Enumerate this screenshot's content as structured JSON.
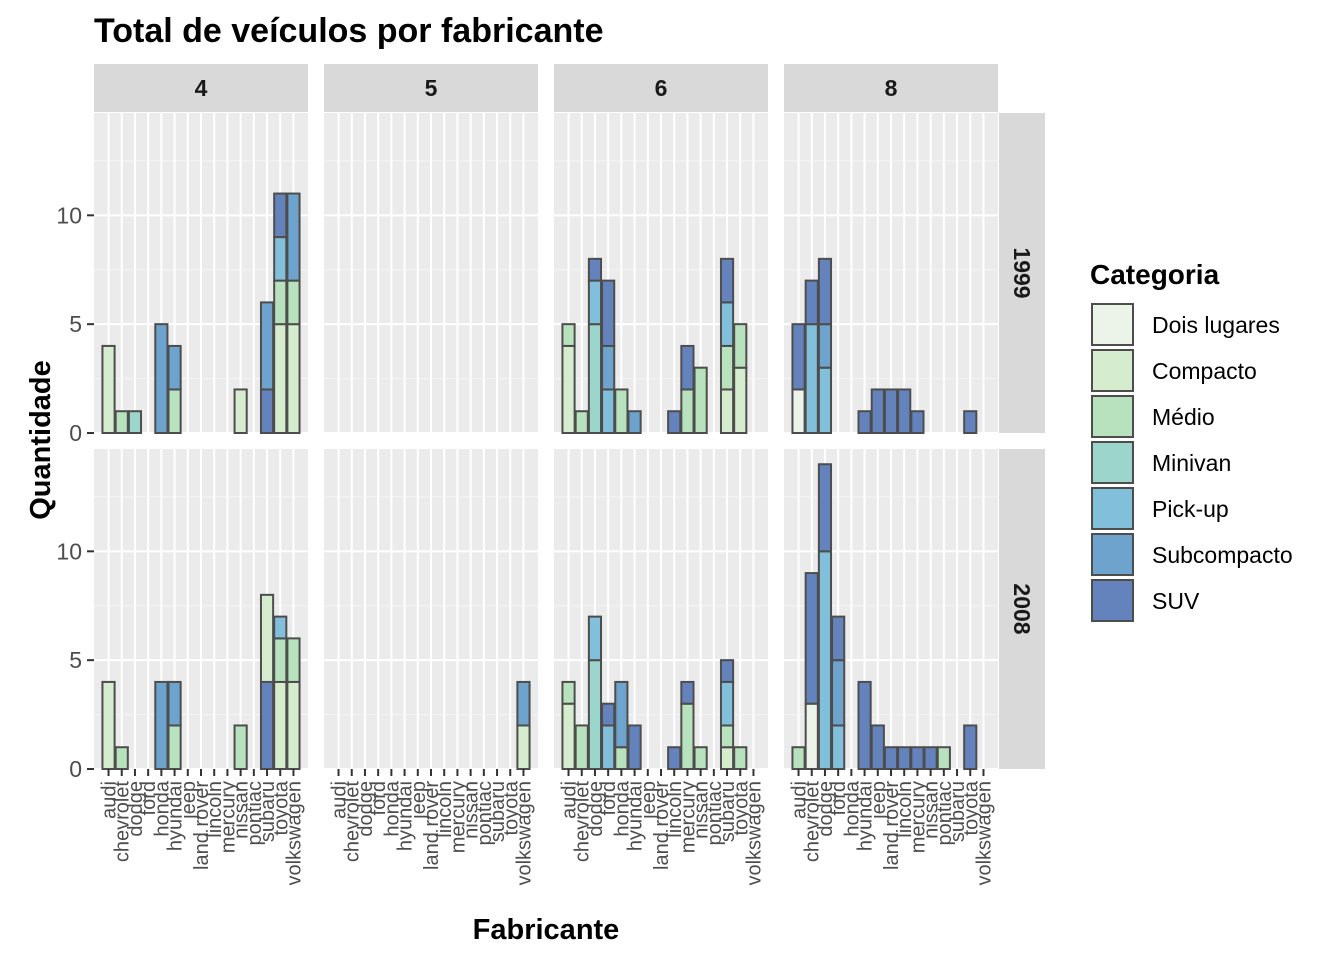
{
  "colors": {
    "panel_bg": "#ebebeb",
    "grid_major": "#ffffff",
    "grid_minor": "#f5f5f5",
    "strip_bg": "#d9d9d9",
    "bar_outline": "#4d4d4d",
    "tick": "#333333"
  },
  "chart_data": {
    "type": "bar",
    "stacked": true,
    "title": "Total de veículos por fabricante",
    "xlabel": "Fabricante",
    "ylabel": "Quantidade",
    "facet_cols": [
      "4",
      "5",
      "6",
      "8"
    ],
    "facet_rows": [
      "1999",
      "2008"
    ],
    "categories": [
      "audi",
      "chevrolet",
      "dodge",
      "ford",
      "honda",
      "hyundai",
      "jeep",
      "land rover",
      "lincoln",
      "mercury",
      "nissan",
      "pontiac",
      "subaru",
      "toyota",
      "volkswagen"
    ],
    "ylim": [
      0,
      14.7
    ],
    "yticks": [
      0,
      5,
      10
    ],
    "grid": true,
    "legend": {
      "title": "Categoria",
      "position": "right",
      "entries": [
        {
          "name": "Dois lugares",
          "color": "#ecf4e9"
        },
        {
          "name": "Compacto",
          "color": "#d5edce"
        },
        {
          "name": "Médio",
          "color": "#b8e2bd"
        },
        {
          "name": "Minivan",
          "color": "#9bd5cb"
        },
        {
          "name": "Pick-up",
          "color": "#82bfdb"
        },
        {
          "name": "Subcompacto",
          "color": "#6da3cc"
        },
        {
          "name": "SUV",
          "color": "#6483bd"
        }
      ]
    },
    "panels": [
      {
        "cyl": "4",
        "year": "1999",
        "bars": [
          {
            "category": "audi",
            "segments": [
              {
                "series": "Compacto",
                "value": 4
              }
            ]
          },
          {
            "category": "chevrolet",
            "segments": [
              {
                "series": "Médio",
                "value": 1
              }
            ]
          },
          {
            "category": "dodge",
            "segments": [
              {
                "series": "Minivan",
                "value": 1
              }
            ]
          },
          {
            "category": "honda",
            "segments": [
              {
                "series": "Subcompacto",
                "value": 5
              }
            ]
          },
          {
            "category": "hyundai",
            "segments": [
              {
                "series": "Médio",
                "value": 2
              },
              {
                "series": "Subcompacto",
                "value": 2
              }
            ]
          },
          {
            "category": "nissan",
            "segments": [
              {
                "series": "Compacto",
                "value": 2
              }
            ]
          },
          {
            "category": "subaru",
            "segments": [
              {
                "series": "SUV",
                "value": 2
              },
              {
                "series": "Subcompacto",
                "value": 4
              }
            ]
          },
          {
            "category": "toyota",
            "segments": [
              {
                "series": "Compacto",
                "value": 5
              },
              {
                "series": "Médio",
                "value": 2
              },
              {
                "series": "Pick-up",
                "value": 2
              },
              {
                "series": "SUV",
                "value": 2
              }
            ]
          },
          {
            "category": "volkswagen",
            "segments": [
              {
                "series": "Compacto",
                "value": 5
              },
              {
                "series": "Médio",
                "value": 2
              },
              {
                "series": "Subcompacto",
                "value": 4
              }
            ]
          }
        ]
      },
      {
        "cyl": "6",
        "year": "1999",
        "bars": [
          {
            "category": "audi",
            "segments": [
              {
                "series": "Compacto",
                "value": 4
              },
              {
                "series": "Médio",
                "value": 1
              }
            ]
          },
          {
            "category": "chevrolet",
            "segments": [
              {
                "series": "Médio",
                "value": 1
              }
            ]
          },
          {
            "category": "dodge",
            "segments": [
              {
                "series": "Minivan",
                "value": 5
              },
              {
                "series": "Pick-up",
                "value": 2
              },
              {
                "series": "SUV",
                "value": 1
              }
            ]
          },
          {
            "category": "ford",
            "segments": [
              {
                "series": "Pick-up",
                "value": 2
              },
              {
                "series": "Subcompacto",
                "value": 2
              },
              {
                "series": "SUV",
                "value": 3
              }
            ]
          },
          {
            "category": "honda",
            "segments": [
              {
                "series": "Médio",
                "value": 2
              }
            ]
          },
          {
            "category": "hyundai",
            "segments": [
              {
                "series": "Subcompacto",
                "value": 1
              }
            ]
          },
          {
            "category": "lincoln",
            "segments": [
              {
                "series": "SUV",
                "value": 1
              }
            ]
          },
          {
            "category": "mercury",
            "segments": [
              {
                "series": "Médio",
                "value": 2
              },
              {
                "series": "SUV",
                "value": 2
              }
            ]
          },
          {
            "category": "nissan",
            "segments": [
              {
                "series": "Médio",
                "value": 3
              }
            ]
          },
          {
            "category": "subaru",
            "segments": [
              {
                "series": "Compacto",
                "value": 2
              },
              {
                "series": "Médio",
                "value": 2
              },
              {
                "series": "Pick-up",
                "value": 2
              },
              {
                "series": "SUV",
                "value": 2
              }
            ]
          },
          {
            "category": "toyota",
            "segments": [
              {
                "series": "Compacto",
                "value": 3
              },
              {
                "series": "Médio",
                "value": 2
              }
            ]
          }
        ]
      },
      {
        "cyl": "8",
        "year": "1999",
        "bars": [
          {
            "category": "audi",
            "segments": [
              {
                "series": "Dois lugares",
                "value": 2
              },
              {
                "series": "SUV",
                "value": 3
              }
            ]
          },
          {
            "category": "chevrolet",
            "segments": [
              {
                "series": "Pick-up",
                "value": 5
              },
              {
                "series": "SUV",
                "value": 2
              }
            ]
          },
          {
            "category": "dodge",
            "segments": [
              {
                "series": "Pick-up",
                "value": 3
              },
              {
                "series": "Subcompacto",
                "value": 2
              },
              {
                "series": "SUV",
                "value": 3
              }
            ]
          },
          {
            "category": "hyundai",
            "segments": [
              {
                "series": "SUV",
                "value": 1
              }
            ]
          },
          {
            "category": "jeep",
            "segments": [
              {
                "series": "SUV",
                "value": 2
              }
            ]
          },
          {
            "category": "land rover",
            "segments": [
              {
                "series": "SUV",
                "value": 2
              }
            ]
          },
          {
            "category": "lincoln",
            "segments": [
              {
                "series": "SUV",
                "value": 2
              }
            ]
          },
          {
            "category": "mercury",
            "segments": [
              {
                "series": "SUV",
                "value": 1
              }
            ]
          },
          {
            "category": "toyota",
            "segments": [
              {
                "series": "SUV",
                "value": 1
              }
            ]
          }
        ]
      },
      {
        "cyl": "4",
        "year": "2008",
        "bars": [
          {
            "category": "audi",
            "segments": [
              {
                "series": "Compacto",
                "value": 4
              }
            ]
          },
          {
            "category": "chevrolet",
            "segments": [
              {
                "series": "Médio",
                "value": 1
              }
            ]
          },
          {
            "category": "honda",
            "segments": [
              {
                "series": "Subcompacto",
                "value": 4
              }
            ]
          },
          {
            "category": "hyundai",
            "segments": [
              {
                "series": "Médio",
                "value": 2
              },
              {
                "series": "Subcompacto",
                "value": 2
              }
            ]
          },
          {
            "category": "nissan",
            "segments": [
              {
                "series": "Médio",
                "value": 2
              }
            ]
          },
          {
            "category": "subaru",
            "segments": [
              {
                "series": "SUV",
                "value": 4
              },
              {
                "series": "Compacto",
                "value": 4
              }
            ]
          },
          {
            "category": "toyota",
            "segments": [
              {
                "series": "Compacto",
                "value": 4
              },
              {
                "series": "Médio",
                "value": 2
              },
              {
                "series": "Pick-up",
                "value": 1
              }
            ]
          },
          {
            "category": "volkswagen",
            "segments": [
              {
                "series": "Compacto",
                "value": 4
              },
              {
                "series": "Médio",
                "value": 2
              }
            ]
          }
        ]
      },
      {
        "cyl": "5",
        "year": "2008",
        "bars": [
          {
            "category": "volkswagen",
            "segments": [
              {
                "series": "Compacto",
                "value": 2
              },
              {
                "series": "Subcompacto",
                "value": 2
              }
            ]
          }
        ]
      },
      {
        "cyl": "6",
        "year": "2008",
        "bars": [
          {
            "category": "audi",
            "segments": [
              {
                "series": "Compacto",
                "value": 3
              },
              {
                "series": "Médio",
                "value": 1
              }
            ]
          },
          {
            "category": "chevrolet",
            "segments": [
              {
                "series": "Médio",
                "value": 2
              }
            ]
          },
          {
            "category": "dodge",
            "segments": [
              {
                "series": "Minivan",
                "value": 5
              },
              {
                "series": "Pick-up",
                "value": 2
              }
            ]
          },
          {
            "category": "ford",
            "segments": [
              {
                "series": "Pick-up",
                "value": 2
              },
              {
                "series": "SUV",
                "value": 1
              }
            ]
          },
          {
            "category": "honda",
            "segments": [
              {
                "series": "Médio",
                "value": 1
              },
              {
                "series": "Subcompacto",
                "value": 3
              }
            ]
          },
          {
            "category": "hyundai",
            "segments": [
              {
                "series": "SUV",
                "value": 2
              }
            ]
          },
          {
            "category": "lincoln",
            "segments": [
              {
                "series": "SUV",
                "value": 1
              }
            ]
          },
          {
            "category": "mercury",
            "segments": [
              {
                "series": "Médio",
                "value": 3
              },
              {
                "series": "SUV",
                "value": 1
              }
            ]
          },
          {
            "category": "nissan",
            "segments": [
              {
                "series": "Médio",
                "value": 1
              }
            ]
          },
          {
            "category": "subaru",
            "segments": [
              {
                "series": "Compacto",
                "value": 1
              },
              {
                "series": "Médio",
                "value": 1
              },
              {
                "series": "Pick-up",
                "value": 2
              },
              {
                "series": "SUV",
                "value": 1
              }
            ]
          },
          {
            "category": "toyota",
            "segments": [
              {
                "series": "Médio",
                "value": 1
              }
            ]
          }
        ]
      },
      {
        "cyl": "8",
        "year": "2008",
        "bars": [
          {
            "category": "audi",
            "segments": [
              {
                "series": "Médio",
                "value": 1
              }
            ]
          },
          {
            "category": "chevrolet",
            "segments": [
              {
                "series": "Dois lugares",
                "value": 3
              },
              {
                "series": "SUV",
                "value": 6
              }
            ]
          },
          {
            "category": "dodge",
            "segments": [
              {
                "series": "Pick-up",
                "value": 10
              },
              {
                "series": "SUV",
                "value": 4
              }
            ]
          },
          {
            "category": "ford",
            "segments": [
              {
                "series": "Pick-up",
                "value": 2
              },
              {
                "series": "Subcompacto",
                "value": 3
              },
              {
                "series": "SUV",
                "value": 2
              }
            ]
          },
          {
            "category": "hyundai",
            "segments": [
              {
                "series": "SUV",
                "value": 4
              }
            ]
          },
          {
            "category": "jeep",
            "segments": [
              {
                "series": "SUV",
                "value": 2
              }
            ]
          },
          {
            "category": "land rover",
            "segments": [
              {
                "series": "SUV",
                "value": 1
              }
            ]
          },
          {
            "category": "lincoln",
            "segments": [
              {
                "series": "SUV",
                "value": 1
              }
            ]
          },
          {
            "category": "mercury",
            "segments": [
              {
                "series": "SUV",
                "value": 1
              }
            ]
          },
          {
            "category": "nissan",
            "segments": [
              {
                "series": "SUV",
                "value": 1
              }
            ]
          },
          {
            "category": "pontiac",
            "segments": [
              {
                "series": "Médio",
                "value": 1
              }
            ]
          },
          {
            "category": "toyota",
            "segments": [
              {
                "series": "SUV",
                "value": 2
              }
            ]
          }
        ]
      }
    ]
  }
}
